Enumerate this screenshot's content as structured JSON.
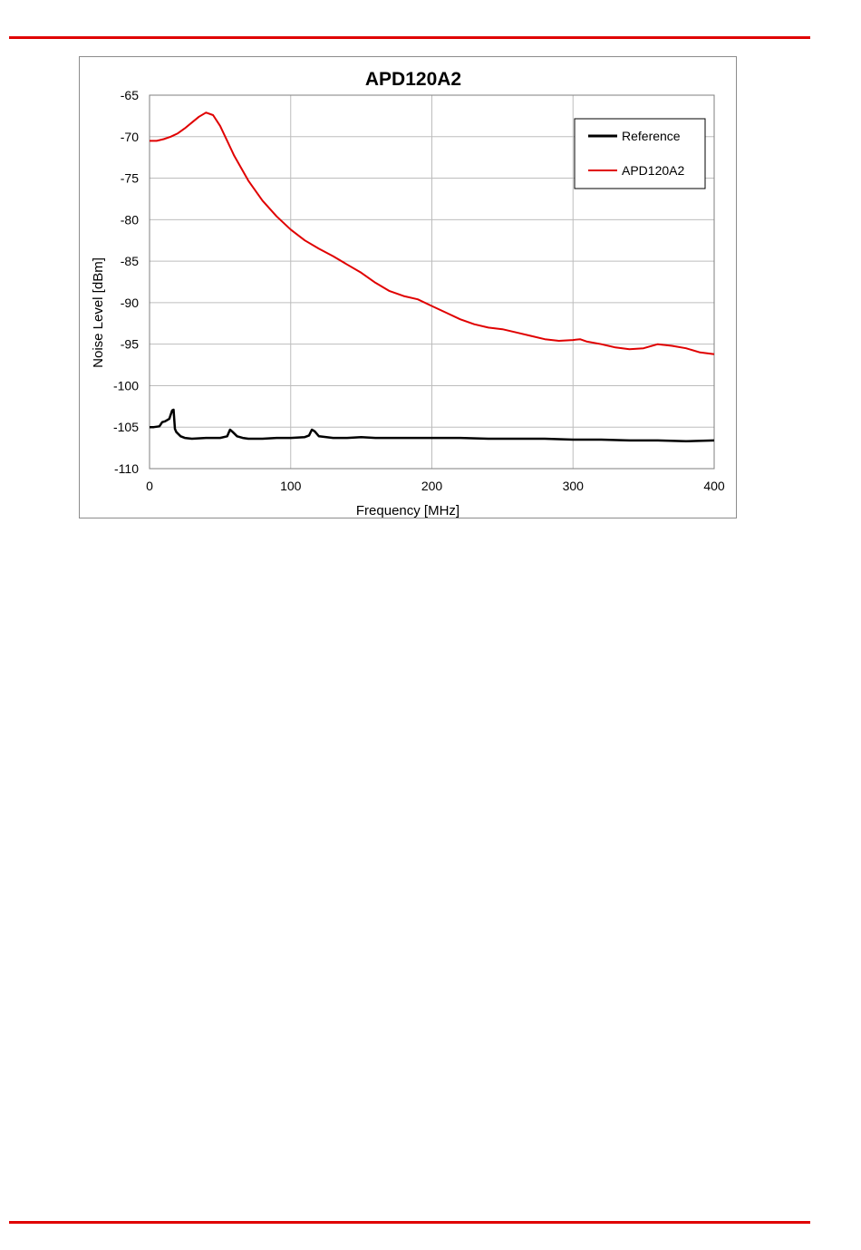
{
  "page": {
    "rule_color": "#e00000"
  },
  "chart_data": {
    "type": "line",
    "title": "APD120A2",
    "xlabel": "Frequency [MHz]",
    "ylabel": "Noise Level [dBm]",
    "xlim": [
      0,
      400
    ],
    "ylim": [
      -110,
      -65
    ],
    "xticks": [
      0,
      100,
      200,
      300,
      400
    ],
    "yticks": [
      -65,
      -70,
      -75,
      -80,
      -85,
      -90,
      -95,
      -100,
      -105,
      -110
    ],
    "grid": true,
    "legend_position": "top-right",
    "series": [
      {
        "name": "Reference",
        "color": "#000000",
        "x": [
          0,
          1,
          3,
          7,
          9,
          11,
          14,
          16,
          17,
          18,
          19,
          22,
          25,
          30,
          40,
          50,
          55,
          57,
          59,
          62,
          66,
          70,
          80,
          90,
          100,
          110,
          113,
          115,
          117,
          120,
          130,
          140,
          150,
          160,
          170,
          180,
          190,
          200,
          220,
          240,
          260,
          280,
          300,
          320,
          340,
          360,
          380,
          400
        ],
        "y": [
          -105,
          -105,
          -105,
          -104.9,
          -104.4,
          -104.3,
          -104,
          -103.0,
          -102.9,
          -105.2,
          -105.6,
          -106.1,
          -106.3,
          -106.4,
          -106.3,
          -106.3,
          -106.1,
          -105.3,
          -105.6,
          -106.1,
          -106.3,
          -106.4,
          -106.4,
          -106.3,
          -106.3,
          -106.2,
          -106.0,
          -105.3,
          -105.5,
          -106.1,
          -106.3,
          -106.3,
          -106.2,
          -106.3,
          -106.3,
          -106.3,
          -106.3,
          -106.3,
          -106.3,
          -106.4,
          -106.4,
          -106.4,
          -106.5,
          -106.5,
          -106.6,
          -106.6,
          -106.7,
          -106.6
        ]
      },
      {
        "name": "APD120A2",
        "color": "#e00000",
        "x": [
          0,
          5,
          10,
          15,
          20,
          25,
          30,
          35,
          40,
          45,
          50,
          55,
          60,
          70,
          80,
          90,
          100,
          110,
          120,
          130,
          140,
          150,
          160,
          170,
          180,
          190,
          200,
          210,
          220,
          230,
          240,
          250,
          260,
          270,
          280,
          290,
          300,
          305,
          310,
          320,
          330,
          340,
          350,
          360,
          370,
          380,
          390,
          400
        ],
        "y": [
          -70.5,
          -70.5,
          -70.3,
          -70,
          -69.6,
          -69.0,
          -68.3,
          -67.6,
          -67.1,
          -67.4,
          -68.7,
          -70.5,
          -72.3,
          -75.3,
          -77.7,
          -79.6,
          -81.2,
          -82.5,
          -83.5,
          -84.4,
          -85.4,
          -86.4,
          -87.6,
          -88.6,
          -89.2,
          -89.6,
          -90.4,
          -91.2,
          -92.0,
          -92.6,
          -93.0,
          -93.2,
          -93.6,
          -94.0,
          -94.4,
          -94.6,
          -94.5,
          -94.4,
          -94.7,
          -95.0,
          -95.4,
          -95.6,
          -95.5,
          -95.0,
          -95.2,
          -95.5,
          -96.0,
          -96.2
        ]
      }
    ]
  }
}
